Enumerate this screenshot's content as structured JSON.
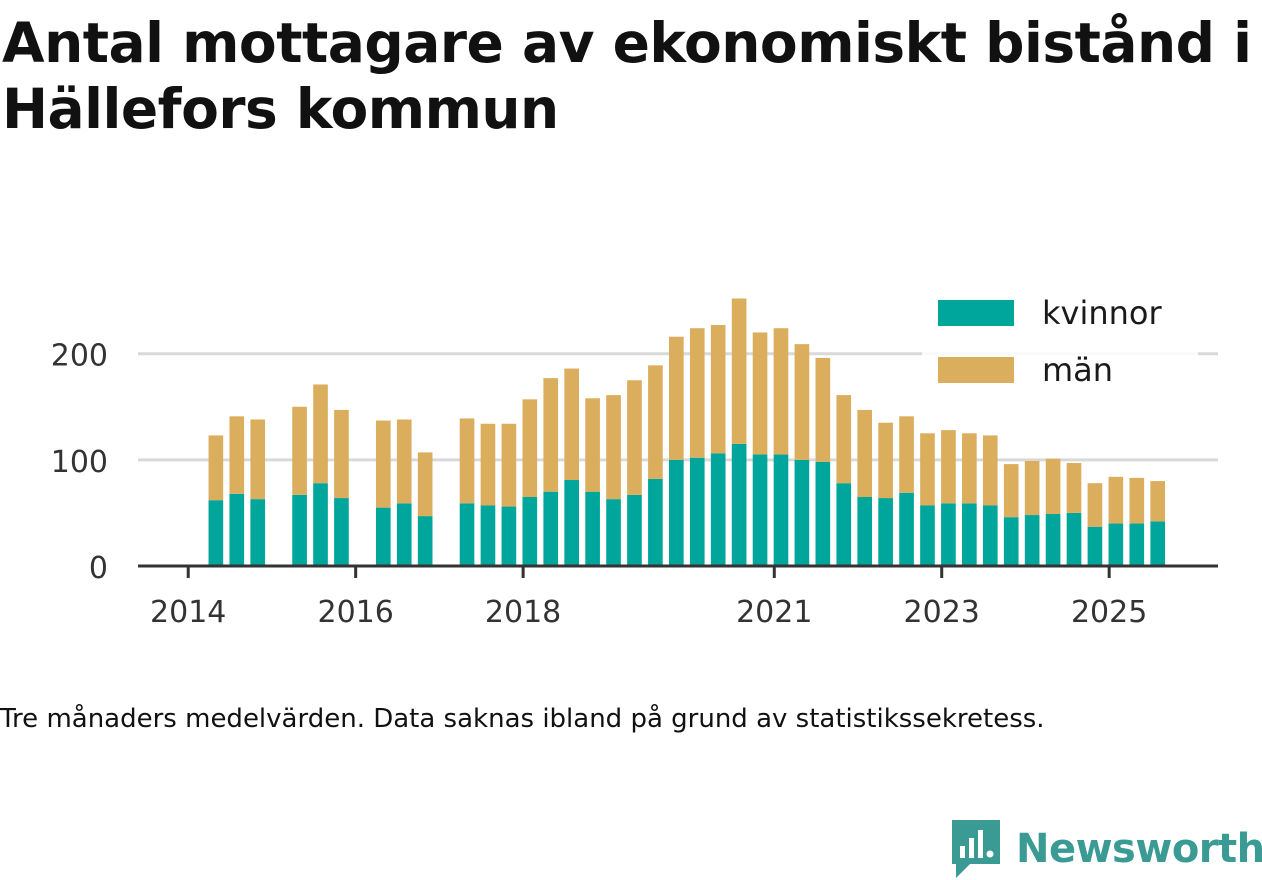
{
  "colors": {
    "kvinnor": "#00a59b",
    "man": "#dbae5e",
    "grid": "#d9d9d9",
    "axis": "#333333",
    "brand": "#3a9a94"
  },
  "chart_data": {
    "type": "bar",
    "stacked": true,
    "title": "Antal mottagare av ekonomiskt bistånd i Hällefors kommun",
    "xlabel": "",
    "ylabel": "",
    "ylim": [
      0,
      260
    ],
    "yticks": [
      0,
      100,
      200
    ],
    "xticks": [
      {
        "label": "2014",
        "pos": 2014.0
      },
      {
        "label": "2016",
        "pos": 2016.0
      },
      {
        "label": "2018",
        "pos": 2018.0
      },
      {
        "label": "2021",
        "pos": 2021.0
      },
      {
        "label": "2023",
        "pos": 2023.0
      },
      {
        "label": "2025",
        "pos": 2025.0
      }
    ],
    "xrange": [
      2013.4,
      2026.3
    ],
    "x": [
      2014.33,
      2014.58,
      2014.83,
      2015.33,
      2015.58,
      2015.83,
      2016.33,
      2016.58,
      2016.83,
      2017.33,
      2017.58,
      2017.83,
      2018.08,
      2018.33,
      2018.58,
      2018.83,
      2019.08,
      2019.33,
      2019.58,
      2019.83,
      2020.08,
      2020.33,
      2020.58,
      2020.83,
      2021.08,
      2021.33,
      2021.58,
      2021.83,
      2022.08,
      2022.33,
      2022.58,
      2022.83,
      2023.08,
      2023.33,
      2023.58,
      2023.83,
      2024.08,
      2024.33,
      2024.58,
      2024.83,
      2025.08,
      2025.33,
      2025.58
    ],
    "series": [
      {
        "name": "kvinnor",
        "values": [
          62,
          68,
          63,
          67,
          78,
          64,
          55,
          59,
          47,
          59,
          57,
          56,
          65,
          70,
          81,
          70,
          63,
          67,
          82,
          100,
          102,
          106,
          115,
          105,
          105,
          100,
          98,
          78,
          65,
          64,
          69,
          57,
          59,
          59,
          57,
          46,
          48,
          49,
          50,
          37,
          40,
          40,
          42
        ]
      },
      {
        "name": "män",
        "values": [
          61,
          73,
          75,
          83,
          93,
          83,
          82,
          79,
          60,
          80,
          77,
          78,
          92,
          107,
          105,
          88,
          98,
          108,
          107,
          116,
          122,
          121,
          137,
          115,
          119,
          109,
          98,
          83,
          82,
          71,
          72,
          68,
          69,
          66,
          66,
          50,
          51,
          52,
          47,
          41,
          44,
          43,
          38
        ]
      }
    ],
    "legend": [
      {
        "label": "kvinnor",
        "series": "kvinnor"
      },
      {
        "label": "män",
        "series": "män"
      }
    ],
    "legend_position": "top-right"
  },
  "footnote": "Tre månaders medelvärden. Data saknas ibland på grund av statistikssekretess.",
  "brand": {
    "name": "Newsworthy",
    "logo": "newsworthy-logo-icon"
  }
}
